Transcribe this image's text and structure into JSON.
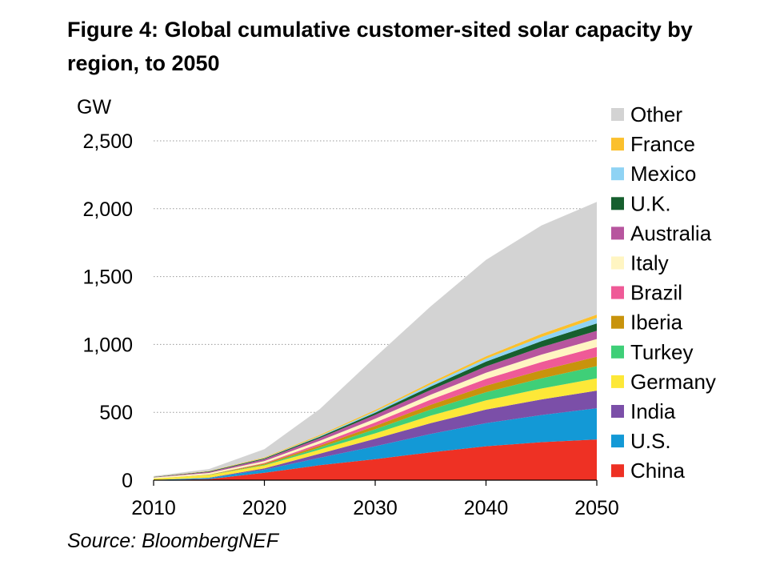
{
  "header": {
    "title": "Figure 4: Global cumulative customer-sited solar capacity by region, to 2050",
    "unit": "GW"
  },
  "footer": {
    "source": "Source: BloombergNEF"
  },
  "chart_data": {
    "type": "area",
    "stacked": true,
    "title": "Figure 4: Global cumulative customer-sited solar capacity by region, to 2050",
    "xlabel": "",
    "ylabel": "GW",
    "xlim": [
      2010,
      2050
    ],
    "ylim": [
      0,
      2500
    ],
    "xticks": [
      2010,
      2020,
      2030,
      2040,
      2050
    ],
    "xtick_labels": [
      "2010",
      "2020",
      "2030",
      "2040",
      "2050"
    ],
    "yticks": [
      0,
      500,
      1000,
      1500,
      2000,
      2500
    ],
    "ytick_labels": [
      "0",
      "500",
      "1,000",
      "1,500",
      "2,000",
      "2,500"
    ],
    "grid": "horizontal dotted",
    "legend_position": "right",
    "x": [
      2010,
      2015,
      2020,
      2025,
      2030,
      2035,
      2040,
      2045,
      2050
    ],
    "series": [
      {
        "name": "China",
        "color": "#ee3124",
        "values": [
          0,
          8,
          55,
          110,
          155,
          205,
          250,
          280,
          300
        ]
      },
      {
        "name": "U.S.",
        "color": "#1399d6",
        "values": [
          2,
          8,
          22,
          55,
          95,
          135,
          170,
          200,
          230
        ]
      },
      {
        "name": "India",
        "color": "#7b4fa8",
        "values": [
          0,
          2,
          10,
          30,
          55,
          80,
          100,
          115,
          130
        ]
      },
      {
        "name": "Germany",
        "color": "#fde838",
        "values": [
          10,
          20,
          22,
          30,
          40,
          55,
          68,
          80,
          90
        ]
      },
      {
        "name": "Turkey",
        "color": "#3fcf78",
        "values": [
          0,
          1,
          5,
          15,
          30,
          45,
          60,
          75,
          90
        ]
      },
      {
        "name": "Iberia",
        "color": "#c8930c",
        "values": [
          0,
          2,
          8,
          15,
          25,
          35,
          48,
          60,
          70
        ]
      },
      {
        "name": "Brazil",
        "color": "#ef5a97",
        "values": [
          0,
          0,
          5,
          15,
          25,
          38,
          50,
          60,
          70
        ]
      },
      {
        "name": "Italy",
        "color": "#fff5c2",
        "values": [
          8,
          12,
          14,
          20,
          28,
          36,
          46,
          55,
          60
        ]
      },
      {
        "name": "Australia",
        "color": "#b7559e",
        "values": [
          2,
          8,
          14,
          20,
          28,
          36,
          46,
          55,
          60
        ]
      },
      {
        "name": "U.K.",
        "color": "#165f2e",
        "values": [
          2,
          4,
          6,
          10,
          16,
          25,
          35,
          45,
          55
        ]
      },
      {
        "name": "Mexico",
        "color": "#8fd3f4",
        "values": [
          0,
          0,
          2,
          6,
          10,
          16,
          22,
          30,
          40
        ]
      },
      {
        "name": "France",
        "color": "#fbc02d",
        "values": [
          1,
          2,
          5,
          8,
          10,
          14,
          18,
          22,
          25
        ]
      },
      {
        "name": "Other",
        "color": "#d3d3d3",
        "values": [
          5,
          15,
          60,
          190,
          390,
          560,
          710,
          800,
          830
        ]
      }
    ]
  }
}
